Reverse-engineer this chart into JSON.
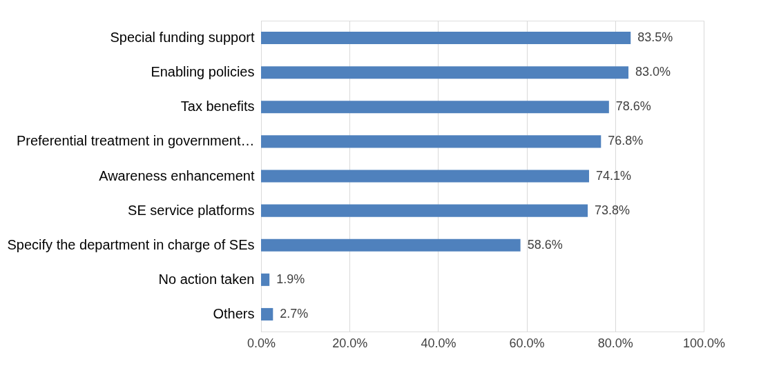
{
  "chart_data": {
    "type": "bar",
    "orientation": "horizontal",
    "categories": [
      "Special funding support",
      "Enabling policies",
      "Tax benefits",
      "Preferential treatment in government…",
      "Awareness enhancement",
      "SE service platforms",
      "Specify the department in charge of SEs",
      "No action taken",
      "Others"
    ],
    "values": [
      83.5,
      83.0,
      78.6,
      76.8,
      74.1,
      73.8,
      58.6,
      1.9,
      2.7
    ],
    "value_labels": [
      "83.5%",
      "83.0%",
      "78.6%",
      "76.8%",
      "74.1%",
      "73.8%",
      "58.6%",
      "1.9%",
      "2.7%"
    ],
    "color": "#4f81bd",
    "xlim": [
      0,
      100
    ],
    "xticks": [
      {
        "value": 0,
        "label": "0.0%"
      },
      {
        "value": 20,
        "label": "20.0%"
      },
      {
        "value": 40,
        "label": "40.0%"
      },
      {
        "value": 60,
        "label": "60.0%"
      },
      {
        "value": 80,
        "label": "80.0%"
      },
      {
        "value": 100,
        "label": "100.0%"
      }
    ],
    "grid": "x"
  }
}
